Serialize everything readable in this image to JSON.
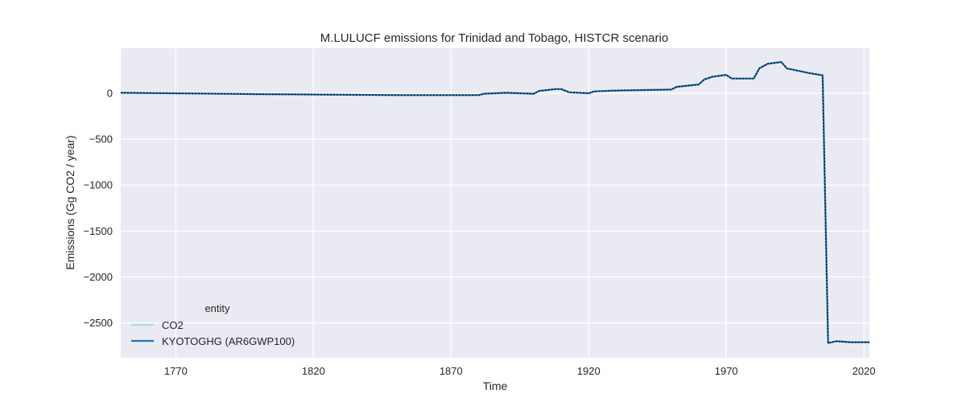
{
  "chart_data": {
    "type": "line",
    "title": "M.LULUCF emissions for Trinidad and Tobago, HISTCR scenario",
    "xlabel": "Time",
    "ylabel": "Emissions (Gg CO2 / year)",
    "xlim": [
      1750,
      2022
    ],
    "ylim": [
      -2880,
      490
    ],
    "xticks": [
      1770,
      1820,
      1870,
      1920,
      1970,
      2020
    ],
    "yticks": [
      0,
      -500,
      -1000,
      -1500,
      -2000,
      -2500
    ],
    "grid": true,
    "legend": {
      "title": "entity",
      "position": "lower-left",
      "entries": [
        "CO2",
        "KYOTOGHG (AR6GWP100)"
      ]
    },
    "colors": {
      "background": "#eaeaf2",
      "grid": "#ffffff",
      "co2": "#a6dcea",
      "kyotoghg": "#1f77b4",
      "overlay": "#000000"
    },
    "series": [
      {
        "name": "CO2",
        "x": [
          1750,
          1800,
          1850,
          1880,
          1882,
          1890,
          1895,
          1900,
          1902,
          1908,
          1910,
          1913,
          1920,
          1922,
          1930,
          1940,
          1950,
          1952,
          1960,
          1962,
          1965,
          1970,
          1972,
          1980,
          1982,
          1985,
          1990,
          1992,
          2000,
          2005,
          2007,
          2010,
          2015,
          2022
        ],
        "y": [
          5,
          -10,
          -20,
          -20,
          -5,
          5,
          0,
          -5,
          25,
          45,
          45,
          10,
          0,
          20,
          30,
          35,
          40,
          70,
          95,
          150,
          180,
          200,
          160,
          160,
          270,
          320,
          340,
          270,
          220,
          195,
          -2720,
          -2700,
          -2710,
          -2710
        ]
      },
      {
        "name": "KYOTOGHG (AR6GWP100)",
        "x": [
          1750,
          1800,
          1850,
          1880,
          1882,
          1890,
          1895,
          1900,
          1902,
          1908,
          1910,
          1913,
          1920,
          1922,
          1930,
          1940,
          1950,
          1952,
          1960,
          1962,
          1965,
          1970,
          1972,
          1980,
          1982,
          1985,
          1990,
          1992,
          2000,
          2005,
          2007,
          2010,
          2015,
          2022
        ],
        "y": [
          5,
          -10,
          -20,
          -20,
          -5,
          5,
          0,
          -5,
          25,
          45,
          45,
          10,
          0,
          20,
          30,
          35,
          40,
          70,
          95,
          150,
          180,
          200,
          160,
          160,
          270,
          320,
          340,
          270,
          220,
          195,
          -2720,
          -2700,
          -2710,
          -2710
        ]
      }
    ]
  }
}
